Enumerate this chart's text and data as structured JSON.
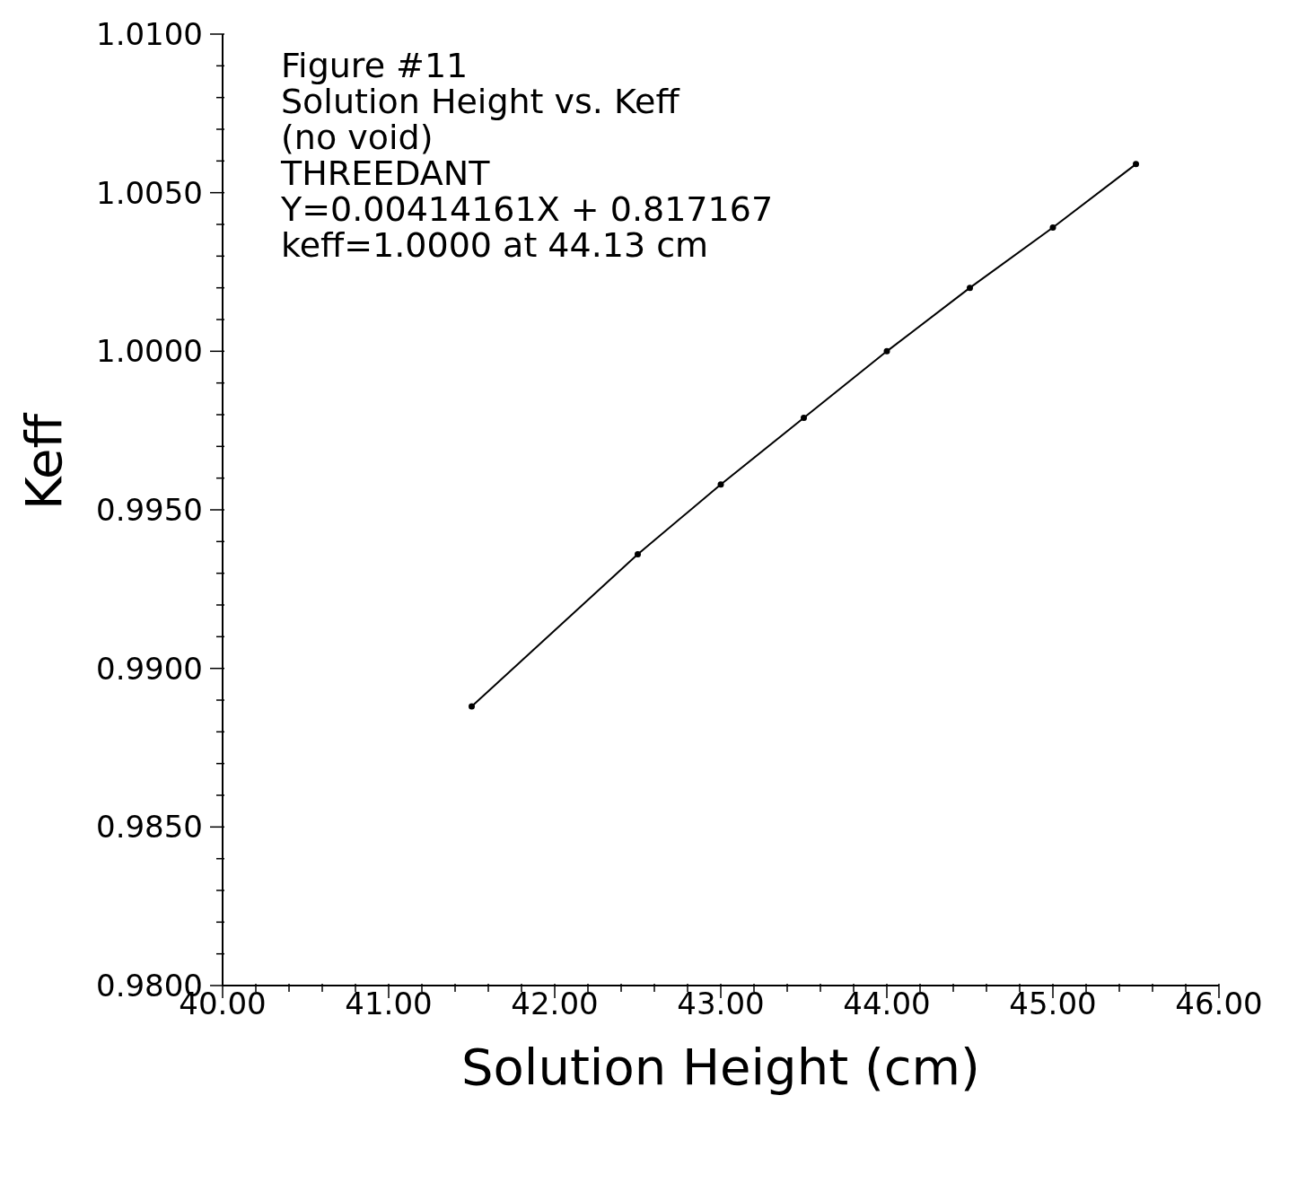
{
  "chart_data": {
    "type": "line",
    "xlabel": "Solution Height (cm)",
    "ylabel": "Keff",
    "annotations": [
      "Figure #11",
      "Solution Height vs. Keff",
      "(no void)",
      "THREEDANT",
      "Y=0.00414161X + 0.817167",
      "keff=1.0000 at 44.13 cm"
    ],
    "x": [
      41.5,
      42.5,
      43.0,
      43.5,
      44.0,
      44.5,
      45.0,
      45.5
    ],
    "series": [
      {
        "color": "#000000",
        "values": [
          0.9888,
          0.9936,
          0.9958,
          0.9979,
          1.0,
          1.002,
          1.0039,
          1.0059
        ]
      }
    ],
    "marker": "circle",
    "line_style": "solid",
    "grid": false,
    "legend": false,
    "xlim": [
      40,
      46
    ],
    "xticks": [
      {
        "value": 40,
        "label": "40.00"
      },
      {
        "value": 40.2,
        "label": null
      },
      {
        "value": 40.4,
        "label": null
      },
      {
        "value": 40.6,
        "label": null
      },
      {
        "value": 40.8,
        "label": null
      },
      {
        "value": 41,
        "label": "41.00"
      },
      {
        "value": 41.2,
        "label": null
      },
      {
        "value": 41.4,
        "label": null
      },
      {
        "value": 41.6,
        "label": null
      },
      {
        "value": 41.8,
        "label": null
      },
      {
        "value": 42,
        "label": "42.00"
      },
      {
        "value": 42.2,
        "label": null
      },
      {
        "value": 42.4,
        "label": null
      },
      {
        "value": 42.6,
        "label": null
      },
      {
        "value": 42.8,
        "label": null
      },
      {
        "value": 43,
        "label": "43.00"
      },
      {
        "value": 43.2,
        "label": null
      },
      {
        "value": 43.4,
        "label": null
      },
      {
        "value": 43.6,
        "label": null
      },
      {
        "value": 43.8,
        "label": null
      },
      {
        "value": 44,
        "label": "44.00"
      },
      {
        "value": 44.2,
        "label": null
      },
      {
        "value": 44.4,
        "label": null
      },
      {
        "value": 44.6,
        "label": null
      },
      {
        "value": 44.8,
        "label": null
      },
      {
        "value": 45,
        "label": "45.00"
      },
      {
        "value": 45.2,
        "label": null
      },
      {
        "value": 45.4,
        "label": null
      },
      {
        "value": 45.6,
        "label": null
      },
      {
        "value": 45.8,
        "label": null
      },
      {
        "value": 46,
        "label": "46.00"
      }
    ],
    "ylim": [
      0.98,
      1.01
    ],
    "yticks": [
      {
        "value": 0.98,
        "label": "0.9800"
      },
      {
        "value": 0.981,
        "label": null
      },
      {
        "value": 0.982,
        "label": null
      },
      {
        "value": 0.983,
        "label": null
      },
      {
        "value": 0.984,
        "label": null
      },
      {
        "value": 0.985,
        "label": "0.9850"
      },
      {
        "value": 0.986,
        "label": null
      },
      {
        "value": 0.987,
        "label": null
      },
      {
        "value": 0.988,
        "label": null
      },
      {
        "value": 0.989,
        "label": null
      },
      {
        "value": 0.99,
        "label": "0.9900"
      },
      {
        "value": 0.991,
        "label": null
      },
      {
        "value": 0.992,
        "label": null
      },
      {
        "value": 0.993,
        "label": null
      },
      {
        "value": 0.994,
        "label": null
      },
      {
        "value": 0.995,
        "label": "0.9950"
      },
      {
        "value": 0.996,
        "label": null
      },
      {
        "value": 0.997,
        "label": null
      },
      {
        "value": 0.998,
        "label": null
      },
      {
        "value": 0.999,
        "label": null
      },
      {
        "value": 1.0,
        "label": "1.0000"
      },
      {
        "value": 1.001,
        "label": null
      },
      {
        "value": 1.002,
        "label": null
      },
      {
        "value": 1.003,
        "label": null
      },
      {
        "value": 1.004,
        "label": null
      },
      {
        "value": 1.005,
        "label": "1.0050"
      },
      {
        "value": 1.006,
        "label": null
      },
      {
        "value": 1.007,
        "label": null
      },
      {
        "value": 1.008,
        "label": null
      },
      {
        "value": 1.009,
        "label": null
      },
      {
        "value": 1.01,
        "label": "1.0100"
      }
    ]
  }
}
